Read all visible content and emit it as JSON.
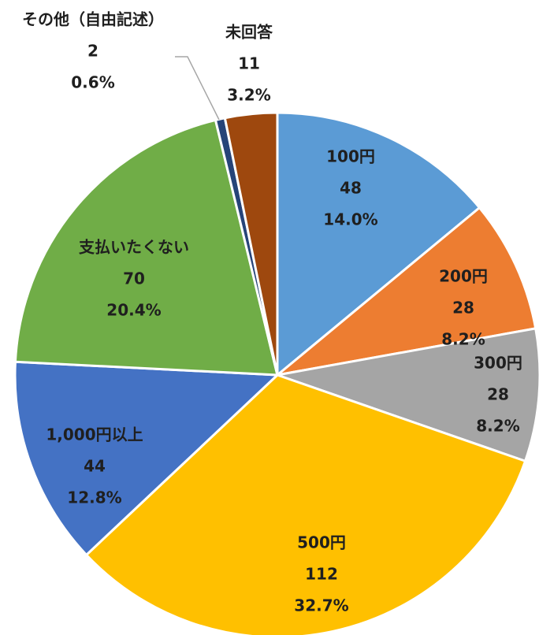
{
  "chart_data": {
    "type": "pie",
    "categories": [
      "100円",
      "200円",
      "300円",
      "500円",
      "1,000円以上",
      "支払いたくない",
      "その他（自由記述）",
      "未回答"
    ],
    "values": [
      48,
      28,
      28,
      112,
      44,
      70,
      2,
      11
    ],
    "percentages": [
      14.0,
      8.2,
      8.2,
      32.7,
      12.8,
      20.4,
      0.6,
      3.2
    ],
    "percentage_labels": [
      "14.0%",
      "8.2%",
      "8.2%",
      "32.7%",
      "12.8%",
      "20.4%",
      "0.6%",
      "3.2%"
    ],
    "colors": [
      "#5b9bd5",
      "#ed7d31",
      "#a5a5a5",
      "#ffc000",
      "#4472c4",
      "#70ad47",
      "#264478",
      "#9e480e"
    ]
  }
}
